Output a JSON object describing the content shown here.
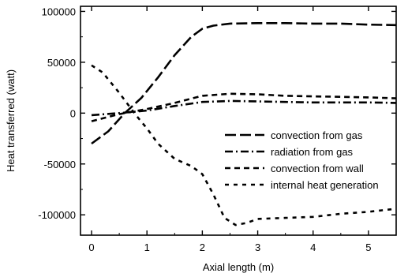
{
  "chart_data": {
    "type": "line",
    "xlabel": "Axial length (m)",
    "ylabel": "Heat transferred (watt)",
    "xlim": [
      -0.2,
      5.5
    ],
    "ylim": [
      -120000,
      105000
    ],
    "x_ticks": [
      0,
      1,
      2,
      3,
      4,
      5
    ],
    "x_tick_labels": [
      "0",
      "1",
      "2",
      "3",
      "4",
      "5"
    ],
    "y_ticks": [
      100000,
      50000,
      0,
      -50000,
      -100000
    ],
    "y_tick_labels": [
      "100000",
      "50000",
      "0",
      "-50000",
      "-100000"
    ],
    "grid": false,
    "legend_position": "lower-right",
    "series": [
      {
        "name": "convection from gas",
        "style": "long-dash",
        "color": "#000000",
        "x": [
          0,
          0.3,
          0.6,
          0.9,
          1.2,
          1.5,
          1.8,
          2.0,
          2.2,
          2.5,
          3.0,
          3.5,
          4.0,
          4.5,
          5.0,
          5.5
        ],
        "y": [
          -30000,
          -18000,
          0,
          15000,
          35000,
          57000,
          75000,
          83000,
          86000,
          88000,
          88500,
          88500,
          88000,
          88000,
          87000,
          86500
        ]
      },
      {
        "name": "radiation from gas",
        "style": "dash-dot",
        "color": "#000000",
        "x": [
          0,
          0.5,
          1.0,
          1.5,
          2.0,
          2.5,
          3.0,
          3.5,
          4.0,
          4.5,
          5.0,
          5.5
        ],
        "y": [
          -2000,
          0,
          2500,
          7000,
          11000,
          12000,
          11500,
          11000,
          10500,
          10500,
          10500,
          10000
        ]
      },
      {
        "name": "convection from wall",
        "style": "short-dash",
        "color": "#000000",
        "x": [
          0,
          0.5,
          1.0,
          1.5,
          2.0,
          2.5,
          3.0,
          3.5,
          4.0,
          4.5,
          5.0,
          5.5
        ],
        "y": [
          -8000,
          -1000,
          4000,
          10000,
          17000,
          19000,
          18500,
          17000,
          16500,
          16000,
          15500,
          14500
        ]
      },
      {
        "name": "internal heat generation",
        "style": "dotted-dash",
        "color": "#000000",
        "x": [
          0,
          0.2,
          0.5,
          0.8,
          1.0,
          1.2,
          1.5,
          1.8,
          2.0,
          2.2,
          2.4,
          2.6,
          2.8,
          3.0,
          3.5,
          4.0,
          4.5,
          5.0,
          5.5
        ],
        "y": [
          47000,
          40000,
          20000,
          -2000,
          -15000,
          -30000,
          -45000,
          -52000,
          -60000,
          -80000,
          -103000,
          -110000,
          -108000,
          -104000,
          -103000,
          -102000,
          -99000,
          -97000,
          -94000
        ]
      }
    ]
  }
}
